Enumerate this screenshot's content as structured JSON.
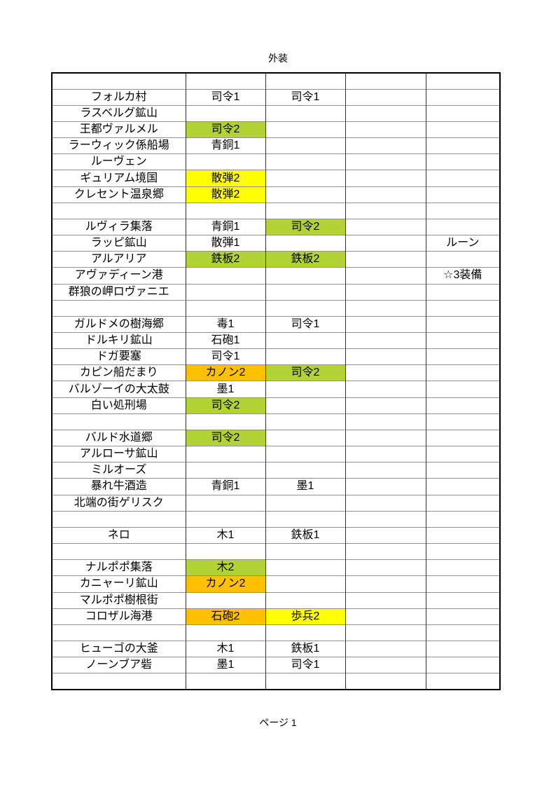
{
  "page": {
    "title": "外装",
    "footer": "ページ 1"
  },
  "colors": {
    "green": "#B2D235",
    "yellow": "#FFFF00",
    "orange": "#FFC000"
  },
  "table": {
    "rows": [
      {
        "name": "",
        "cells": [
          {},
          {},
          {},
          {}
        ]
      },
      {
        "name": "フォルカ村",
        "cells": [
          {
            "t": "司令1"
          },
          {
            "t": "司令1"
          },
          {},
          {}
        ]
      },
      {
        "name": "ラスベルグ鉱山",
        "cells": [
          {},
          {},
          {},
          {}
        ]
      },
      {
        "name": "王都ヴァルメル",
        "cells": [
          {
            "t": "司令2",
            "hl": "green"
          },
          {},
          {},
          {}
        ]
      },
      {
        "name": "ラーウィック係船場",
        "cells": [
          {
            "t": "青銅1"
          },
          {},
          {},
          {}
        ]
      },
      {
        "name": "ルーヴェン",
        "cells": [
          {},
          {},
          {},
          {}
        ]
      },
      {
        "name": "ギュリアム境国",
        "cells": [
          {
            "t": "散弾2",
            "hl": "yellow"
          },
          {},
          {},
          {}
        ]
      },
      {
        "name": "クレセント温泉郷",
        "cells": [
          {
            "t": "散弾2",
            "hl": "yellow"
          },
          {},
          {},
          {}
        ]
      },
      {
        "name": "",
        "cells": [
          {},
          {},
          {},
          {}
        ]
      },
      {
        "name": "ルヴィラ集落",
        "cells": [
          {
            "t": "青銅1"
          },
          {
            "t": "司令2",
            "hl": "green"
          },
          {},
          {}
        ]
      },
      {
        "name": "ラッピ鉱山",
        "cells": [
          {
            "t": "散弾1"
          },
          {},
          {},
          {
            "t": "ルーン"
          }
        ]
      },
      {
        "name": "アルアリア",
        "cells": [
          {
            "t": "鉄板2",
            "hl": "green"
          },
          {
            "t": "鉄板2",
            "hl": "green"
          },
          {},
          {}
        ]
      },
      {
        "name": "アヴァディーン港",
        "cells": [
          {},
          {},
          {},
          {
            "t": "☆3装備"
          }
        ]
      },
      {
        "name": "群狼の岬ロヴァニエ",
        "cells": [
          {},
          {},
          {},
          {}
        ]
      },
      {
        "name": "",
        "cells": [
          {},
          {},
          {},
          {}
        ]
      },
      {
        "name": "ガルドメの樹海郷",
        "cells": [
          {
            "t": "毒1"
          },
          {
            "t": "司令1"
          },
          {},
          {}
        ]
      },
      {
        "name": "ドルキリ鉱山",
        "cells": [
          {
            "t": "石砲1"
          },
          {},
          {},
          {}
        ]
      },
      {
        "name": "ドガ要塞",
        "cells": [
          {
            "t": "司令1"
          },
          {},
          {},
          {}
        ]
      },
      {
        "name": "カピン船だまり",
        "cells": [
          {
            "t": "カノン2",
            "hl": "orange"
          },
          {
            "t": "司令2",
            "hl": "green"
          },
          {},
          {}
        ]
      },
      {
        "name": "バルゾーイの大太鼓",
        "cells": [
          {
            "t": "墨1"
          },
          {},
          {},
          {}
        ]
      },
      {
        "name": "白い処刑場",
        "cells": [
          {
            "t": "司令2",
            "hl": "green"
          },
          {},
          {},
          {}
        ]
      },
      {
        "name": "",
        "cells": [
          {},
          {},
          {},
          {}
        ]
      },
      {
        "name": "バルド水道郷",
        "cells": [
          {
            "t": "司令2",
            "hl": "green"
          },
          {},
          {},
          {}
        ]
      },
      {
        "name": "アルローサ鉱山",
        "cells": [
          {},
          {},
          {},
          {}
        ]
      },
      {
        "name": "ミルオーズ",
        "cells": [
          {},
          {},
          {},
          {}
        ]
      },
      {
        "name": "暴れ牛酒造",
        "cells": [
          {
            "t": "青銅1"
          },
          {
            "t": "墨1"
          },
          {},
          {}
        ]
      },
      {
        "name": "北端の街ゲリスク",
        "cells": [
          {},
          {},
          {},
          {}
        ]
      },
      {
        "name": "",
        "cells": [
          {},
          {},
          {},
          {}
        ]
      },
      {
        "name": "ネロ",
        "cells": [
          {
            "t": "木1"
          },
          {
            "t": "鉄板1"
          },
          {},
          {}
        ]
      },
      {
        "name": "",
        "cells": [
          {},
          {},
          {},
          {}
        ]
      },
      {
        "name": "ナルポポ集落",
        "cells": [
          {
            "t": "木2",
            "hl": "green"
          },
          {},
          {},
          {}
        ]
      },
      {
        "name": "カニャーリ鉱山",
        "cells": [
          {
            "t": "カノン2",
            "hl": "orange"
          },
          {},
          {},
          {}
        ]
      },
      {
        "name": "マルポポ樹根街",
        "cells": [
          {},
          {},
          {},
          {}
        ]
      },
      {
        "name": "コロザル海港",
        "cells": [
          {
            "t": "石砲2",
            "hl": "orange"
          },
          {
            "t": "歩兵2",
            "hl": "yellow"
          },
          {},
          {}
        ]
      },
      {
        "name": "",
        "cells": [
          {},
          {},
          {},
          {}
        ]
      },
      {
        "name": "ヒューゴの大釜",
        "cells": [
          {
            "t": "木1"
          },
          {
            "t": "鉄板1"
          },
          {},
          {}
        ]
      },
      {
        "name": "ノーンブア砦",
        "cells": [
          {
            "t": "墨1"
          },
          {
            "t": "司令1"
          },
          {},
          {}
        ]
      },
      {
        "name": "",
        "cells": [
          {},
          {},
          {},
          {}
        ]
      }
    ]
  }
}
